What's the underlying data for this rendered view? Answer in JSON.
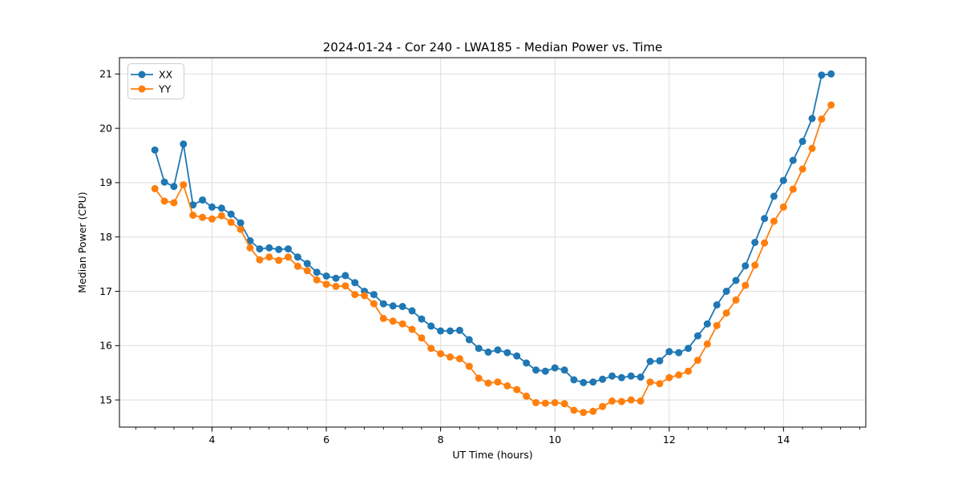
{
  "chart_data": {
    "type": "line",
    "title": "2024-01-24 - Cor 240 - LWA185 - Median Power vs. Time",
    "xlabel": "UT Time (hours)",
    "ylabel": "Median Power (CPU)",
    "xlim": [
      2.38,
      15.44
    ],
    "ylim": [
      14.5,
      21.3
    ],
    "x_ticks": [
      4,
      6,
      8,
      10,
      12,
      14
    ],
    "y_ticks": [
      15,
      16,
      17,
      18,
      19,
      20,
      21
    ],
    "x_minor_divisions_per_unit": 3,
    "grid": true,
    "legend": {
      "position": "upper left"
    },
    "x": [
      3.0,
      3.167,
      3.333,
      3.5,
      3.667,
      3.833,
      4.0,
      4.167,
      4.333,
      4.5,
      4.667,
      4.833,
      5.0,
      5.167,
      5.333,
      5.5,
      5.667,
      5.833,
      6.0,
      6.167,
      6.333,
      6.5,
      6.667,
      6.833,
      7.0,
      7.167,
      7.333,
      7.5,
      7.667,
      7.833,
      8.0,
      8.167,
      8.333,
      8.5,
      8.667,
      8.833,
      9.0,
      9.167,
      9.333,
      9.5,
      9.667,
      9.833,
      10.0,
      10.167,
      10.333,
      10.5,
      10.667,
      10.833,
      11.0,
      11.167,
      11.333,
      11.5,
      11.667,
      11.833,
      12.0,
      12.167,
      12.333,
      12.5,
      12.667,
      12.833,
      13.0,
      13.167,
      13.333,
      13.5,
      13.667,
      13.833,
      14.0,
      14.167,
      14.333,
      14.5,
      14.667,
      14.833
    ],
    "series": [
      {
        "name": "XX",
        "color": "#1f77b4",
        "marker": "circle",
        "values": [
          19.6,
          19.01,
          18.93,
          19.71,
          18.59,
          18.68,
          18.55,
          18.53,
          18.42,
          18.26,
          17.93,
          17.78,
          17.8,
          17.77,
          17.78,
          17.63,
          17.51,
          17.35,
          17.28,
          17.24,
          17.29,
          17.16,
          17.0,
          16.94,
          16.77,
          16.73,
          16.72,
          16.64,
          16.49,
          16.36,
          16.27,
          16.27,
          16.28,
          16.11,
          15.95,
          15.88,
          15.92,
          15.87,
          15.81,
          15.68,
          15.55,
          15.53,
          15.59,
          15.55,
          15.37,
          15.32,
          15.33,
          15.38,
          15.44,
          15.41,
          15.44,
          15.42,
          15.71,
          15.72,
          15.89,
          15.87,
          15.95,
          16.18,
          16.4,
          16.75,
          17.0,
          17.2,
          17.47,
          17.9,
          18.34,
          18.75,
          19.04,
          19.41,
          19.76,
          20.18,
          20.98,
          21.0
        ]
      },
      {
        "name": "YY",
        "color": "#ff7f0e",
        "marker": "circle",
        "values": [
          18.89,
          18.66,
          18.63,
          18.96,
          18.4,
          18.36,
          18.33,
          18.39,
          18.27,
          18.14,
          17.8,
          17.58,
          17.63,
          17.57,
          17.63,
          17.46,
          17.38,
          17.21,
          17.13,
          17.09,
          17.1,
          16.94,
          16.92,
          16.77,
          16.5,
          16.45,
          16.4,
          16.3,
          16.14,
          15.95,
          15.85,
          15.79,
          15.76,
          15.62,
          15.4,
          15.31,
          15.33,
          15.26,
          15.19,
          15.07,
          14.95,
          14.94,
          14.95,
          14.93,
          14.81,
          14.77,
          14.79,
          14.88,
          14.98,
          14.97,
          15.0,
          14.98,
          15.33,
          15.3,
          15.41,
          15.46,
          15.53,
          15.73,
          16.03,
          16.37,
          16.6,
          16.84,
          17.11,
          17.48,
          17.89,
          18.29,
          18.55,
          18.88,
          19.25,
          19.63,
          20.17,
          20.43
        ]
      }
    ]
  },
  "style": {
    "grid_color": "#dedede",
    "spine_color": "#000000",
    "legend_border_color": "#cccccc",
    "legend_bg": "#ffffff"
  }
}
